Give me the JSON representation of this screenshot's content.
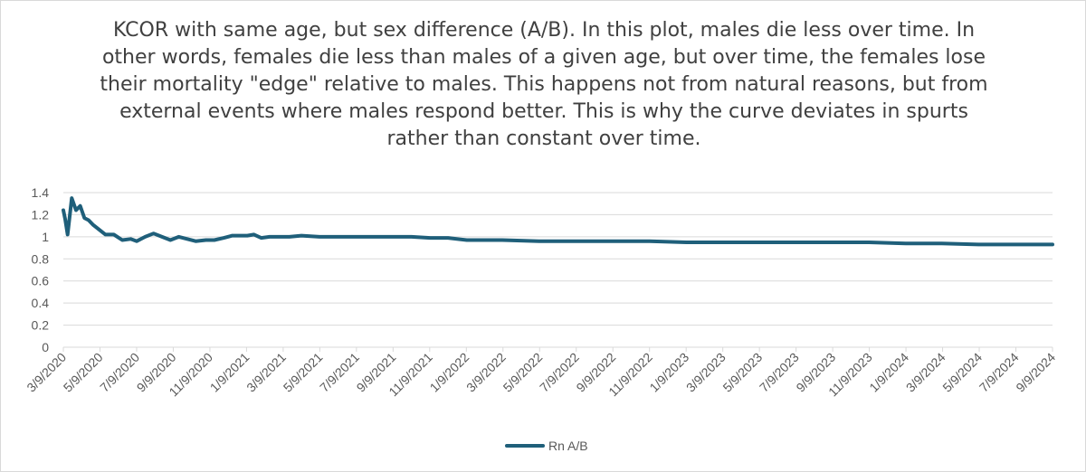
{
  "title": "KCOR with same age, but sex difference (A/B). In this plot, males die less over time. In other words, females die less than males of a given age, but over time, the females lose their mortality \"edge\"  relative to males. This happens not from natural reasons, but from external events where males respond better. This is why the curve deviates in spurts rather than constant over time.",
  "colors": {
    "series": "#1f5f7a",
    "grid": "#d9d9d9",
    "text": "#595959"
  },
  "chart_data": {
    "type": "line",
    "title": "KCOR with same age, but sex difference (A/B). In this plot, males die less over time. In other words, females die less than males of a given age, but over time, the females lose their mortality \"edge\"  relative to males. This happens not from natural reasons, but from external events where males respond better. This is why the curve deviates in spurts rather than constant over time.",
    "xlabel": "",
    "ylabel": "",
    "ylim": [
      0,
      1.4
    ],
    "yticks": [
      "0",
      "0.2",
      "0.4",
      "0.6",
      "0.8",
      "1",
      "1.2",
      "1.4"
    ],
    "xlim": [
      "2020-03-09",
      "2024-09-09"
    ],
    "xtick_labels": [
      "3/9/2020",
      "5/9/2020",
      "7/9/2020",
      "9/9/2020",
      "11/9/2020",
      "1/9/2021",
      "3/9/2021",
      "5/9/2021",
      "7/9/2021",
      "9/9/2021",
      "11/9/2021",
      "1/9/2022",
      "3/9/2022",
      "5/9/2022",
      "7/9/2022",
      "9/9/2022",
      "11/9/2022",
      "1/9/2023",
      "3/9/2023",
      "5/9/2023",
      "7/9/2023",
      "9/9/2023",
      "11/9/2023",
      "1/9/2024",
      "3/9/2024",
      "5/9/2024",
      "7/9/2024",
      "9/9/2024"
    ],
    "grid": "horizontal",
    "legend_position": "bottom",
    "series": [
      {
        "name": "Rn A/B",
        "x": [
          "2020-03-09",
          "2020-03-12",
          "2020-03-16",
          "2020-03-23",
          "2020-03-30",
          "2020-04-06",
          "2020-04-13",
          "2020-04-20",
          "2020-04-27",
          "2020-05-04",
          "2020-05-18",
          "2020-06-01",
          "2020-06-15",
          "2020-06-29",
          "2020-07-09",
          "2020-07-23",
          "2020-08-06",
          "2020-08-20",
          "2020-09-03",
          "2020-09-17",
          "2020-10-01",
          "2020-10-15",
          "2020-11-01",
          "2020-11-15",
          "2020-12-01",
          "2020-12-15",
          "2021-01-01",
          "2021-01-09",
          "2021-01-20",
          "2021-02-01",
          "2021-02-15",
          "2021-03-01",
          "2021-03-20",
          "2021-04-09",
          "2021-05-09",
          "2021-06-01",
          "2021-07-09",
          "2021-09-09",
          "2021-10-09",
          "2021-11-09",
          "2021-12-09",
          "2022-01-09",
          "2022-03-09",
          "2022-05-09",
          "2022-07-09",
          "2022-09-09",
          "2022-11-09",
          "2023-01-09",
          "2023-03-09",
          "2023-05-09",
          "2023-07-09",
          "2023-09-09",
          "2023-11-09",
          "2024-01-09",
          "2024-03-09",
          "2024-05-09",
          "2024-07-09",
          "2024-09-09"
        ],
        "values": [
          1.24,
          1.16,
          1.02,
          1.35,
          1.24,
          1.28,
          1.17,
          1.15,
          1.11,
          1.08,
          1.02,
          1.02,
          0.97,
          0.98,
          0.96,
          1.0,
          1.03,
          1.0,
          0.97,
          1.0,
          0.98,
          0.96,
          0.97,
          0.97,
          0.99,
          1.01,
          1.01,
          1.01,
          1.02,
          0.99,
          1.0,
          1.0,
          1.0,
          1.01,
          1.0,
          1.0,
          1.0,
          1.0,
          1.0,
          0.99,
          0.99,
          0.97,
          0.97,
          0.96,
          0.96,
          0.96,
          0.96,
          0.95,
          0.95,
          0.95,
          0.95,
          0.95,
          0.95,
          0.94,
          0.94,
          0.93,
          0.93,
          0.93
        ]
      }
    ]
  },
  "legend": {
    "label": "Rn A/B"
  }
}
